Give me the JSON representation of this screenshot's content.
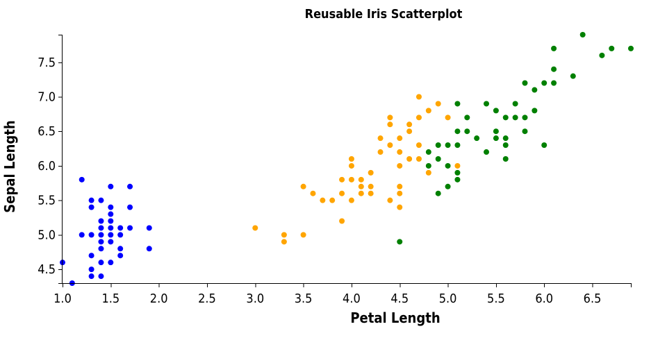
{
  "chart_data": {
    "type": "scatter",
    "title": "Reusable Iris Scatterplot",
    "xlabel": "Petal Length",
    "ylabel": "Sepal Length",
    "xlim": [
      1.0,
      6.9
    ],
    "ylim": [
      4.3,
      7.9
    ],
    "x_ticks": [
      "1.0",
      "1.5",
      "2.0",
      "2.5",
      "3.0",
      "3.5",
      "4.0",
      "4.5",
      "5.0",
      "5.5",
      "6.0",
      "6.5"
    ],
    "y_ticks": [
      "4.5",
      "5.0",
      "5.5",
      "6.0",
      "6.5",
      "7.0",
      "7.5"
    ],
    "grid": false,
    "legend": "none",
    "series": [
      {
        "color": "#0000ff",
        "points": [
          [
            1.0,
            4.6
          ],
          [
            1.1,
            4.3
          ],
          [
            1.2,
            5.8
          ],
          [
            1.2,
            5.0
          ],
          [
            1.3,
            5.5
          ],
          [
            1.3,
            5.4
          ],
          [
            1.3,
            5.0
          ],
          [
            1.3,
            4.7
          ],
          [
            1.3,
            4.5
          ],
          [
            1.3,
            4.4
          ],
          [
            1.4,
            5.5
          ],
          [
            1.4,
            5.2
          ],
          [
            1.4,
            5.1
          ],
          [
            1.4,
            5.0
          ],
          [
            1.4,
            4.9
          ],
          [
            1.4,
            4.8
          ],
          [
            1.4,
            4.6
          ],
          [
            1.4,
            4.4
          ],
          [
            1.5,
            5.7
          ],
          [
            1.5,
            5.4
          ],
          [
            1.5,
            5.3
          ],
          [
            1.5,
            5.2
          ],
          [
            1.5,
            5.1
          ],
          [
            1.5,
            5.0
          ],
          [
            1.5,
            4.9
          ],
          [
            1.5,
            4.6
          ],
          [
            1.6,
            5.1
          ],
          [
            1.6,
            5.0
          ],
          [
            1.6,
            4.8
          ],
          [
            1.6,
            4.7
          ],
          [
            1.7,
            5.7
          ],
          [
            1.7,
            5.4
          ],
          [
            1.7,
            5.1
          ],
          [
            1.9,
            5.1
          ],
          [
            1.9,
            4.8
          ]
        ]
      },
      {
        "color": "#ffa500",
        "points": [
          [
            3.0,
            5.1
          ],
          [
            3.3,
            5.0
          ],
          [
            3.3,
            4.9
          ],
          [
            3.5,
            5.7
          ],
          [
            3.5,
            5.0
          ],
          [
            3.6,
            5.6
          ],
          [
            3.7,
            5.5
          ],
          [
            3.8,
            5.5
          ],
          [
            3.9,
            5.8
          ],
          [
            3.9,
            5.6
          ],
          [
            3.9,
            5.2
          ],
          [
            4.0,
            6.1
          ],
          [
            4.0,
            6.0
          ],
          [
            4.0,
            5.8
          ],
          [
            4.0,
            5.5
          ],
          [
            4.1,
            5.8
          ],
          [
            4.1,
            5.7
          ],
          [
            4.1,
            5.6
          ],
          [
            4.2,
            5.9
          ],
          [
            4.2,
            5.7
          ],
          [
            4.2,
            5.6
          ],
          [
            4.3,
            6.4
          ],
          [
            4.3,
            6.2
          ],
          [
            4.4,
            6.7
          ],
          [
            4.4,
            6.6
          ],
          [
            4.4,
            6.3
          ],
          [
            4.4,
            5.5
          ],
          [
            4.5,
            6.4
          ],
          [
            4.5,
            6.2
          ],
          [
            4.5,
            6.0
          ],
          [
            4.5,
            5.7
          ],
          [
            4.5,
            5.6
          ],
          [
            4.5,
            5.4
          ],
          [
            4.6,
            6.6
          ],
          [
            4.6,
            6.5
          ],
          [
            4.6,
            6.1
          ],
          [
            4.7,
            7.0
          ],
          [
            4.7,
            6.7
          ],
          [
            4.7,
            6.3
          ],
          [
            4.7,
            6.1
          ],
          [
            4.8,
            6.8
          ],
          [
            4.8,
            5.9
          ],
          [
            4.9,
            6.9
          ],
          [
            5.0,
            6.7
          ],
          [
            5.1,
            6.0
          ]
        ]
      },
      {
        "color": "#008000",
        "points": [
          [
            4.5,
            4.9
          ],
          [
            4.8,
            6.2
          ],
          [
            4.8,
            6.0
          ],
          [
            4.9,
            6.3
          ],
          [
            4.9,
            6.1
          ],
          [
            4.9,
            5.6
          ],
          [
            5.0,
            6.3
          ],
          [
            5.0,
            6.0
          ],
          [
            5.0,
            5.7
          ],
          [
            5.1,
            6.9
          ],
          [
            5.1,
            6.5
          ],
          [
            5.1,
            6.3
          ],
          [
            5.1,
            5.9
          ],
          [
            5.1,
            5.8
          ],
          [
            5.2,
            6.7
          ],
          [
            5.2,
            6.5
          ],
          [
            5.3,
            6.4
          ],
          [
            5.4,
            6.9
          ],
          [
            5.4,
            6.2
          ],
          [
            5.5,
            6.8
          ],
          [
            5.5,
            6.5
          ],
          [
            5.5,
            6.4
          ],
          [
            5.6,
            6.7
          ],
          [
            5.6,
            6.4
          ],
          [
            5.6,
            6.3
          ],
          [
            5.6,
            6.1
          ],
          [
            5.7,
            6.9
          ],
          [
            5.7,
            6.7
          ],
          [
            5.8,
            7.2
          ],
          [
            5.8,
            6.7
          ],
          [
            5.8,
            6.5
          ],
          [
            5.9,
            7.1
          ],
          [
            5.9,
            6.8
          ],
          [
            6.0,
            7.2
          ],
          [
            6.0,
            6.3
          ],
          [
            6.1,
            7.7
          ],
          [
            6.1,
            7.4
          ],
          [
            6.1,
            7.2
          ],
          [
            6.3,
            7.3
          ],
          [
            6.4,
            7.9
          ],
          [
            6.6,
            7.6
          ],
          [
            6.7,
            7.7
          ],
          [
            6.9,
            7.7
          ]
        ]
      }
    ]
  }
}
